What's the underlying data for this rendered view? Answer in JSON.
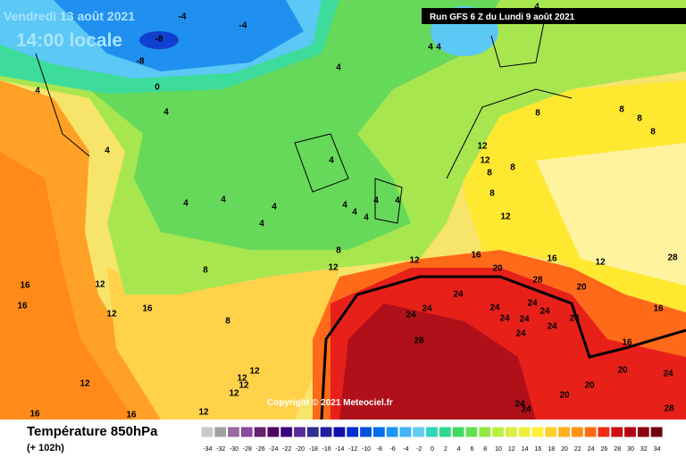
{
  "header": {
    "date": "Vendredi 13 août 2021",
    "time": "14:00 locale",
    "run": "Run GFS 6 Z du Lundi 9 août 2021"
  },
  "copyright": "Copyright © 2021 Meteociel.fr",
  "legend": {
    "title": "Température 850hPa",
    "subtitle": "(+ 102h)",
    "ticks": [
      -34,
      -32,
      -30,
      -28,
      -26,
      -24,
      -22,
      -20,
      -18,
      -16,
      -14,
      -12,
      -10,
      -8,
      -6,
      -4,
      -2,
      0,
      2,
      4,
      6,
      8,
      10,
      12,
      14,
      16,
      18,
      20,
      22,
      24,
      26,
      28,
      30,
      32,
      34
    ],
    "colors": [
      "#c8c8c8",
      "#a0a0a0",
      "#9a6aa0",
      "#8a4a9a",
      "#6a2070",
      "#500060",
      "#3a0080",
      "#5a2a9a",
      "#303090",
      "#2020a0",
      "#1010b0",
      "#0030d0",
      "#0050e0",
      "#0070f0",
      "#1a96f5",
      "#40b4f5",
      "#60cef5",
      "#30d4c0",
      "#30d890",
      "#40d860",
      "#60e050",
      "#90e840",
      "#b8f040",
      "#d8f040",
      "#f0f040",
      "#fff040",
      "#ffd030",
      "#ffb020",
      "#ff9010",
      "#ff6a10",
      "#f03010",
      "#d01010",
      "#b00010",
      "#900010",
      "#700010"
    ]
  },
  "map_labels": [
    -4,
    -4,
    -8,
    -8,
    0,
    4,
    4,
    4,
    4,
    4,
    4,
    4,
    8,
    8,
    8,
    8,
    8,
    8,
    12,
    12,
    4,
    4,
    4,
    4,
    4,
    4,
    4,
    4,
    4,
    4,
    8,
    12,
    12,
    8,
    12,
    16,
    16,
    12,
    20,
    28,
    28,
    20,
    24,
    24,
    24,
    24,
    24,
    24,
    24,
    24,
    24,
    24,
    24,
    28,
    16,
    16,
    20,
    20,
    20,
    24,
    28,
    24,
    24,
    16,
    16,
    12,
    12,
    8,
    12,
    12,
    12,
    12,
    12,
    12,
    16,
    16,
    16,
    8
  ]
}
